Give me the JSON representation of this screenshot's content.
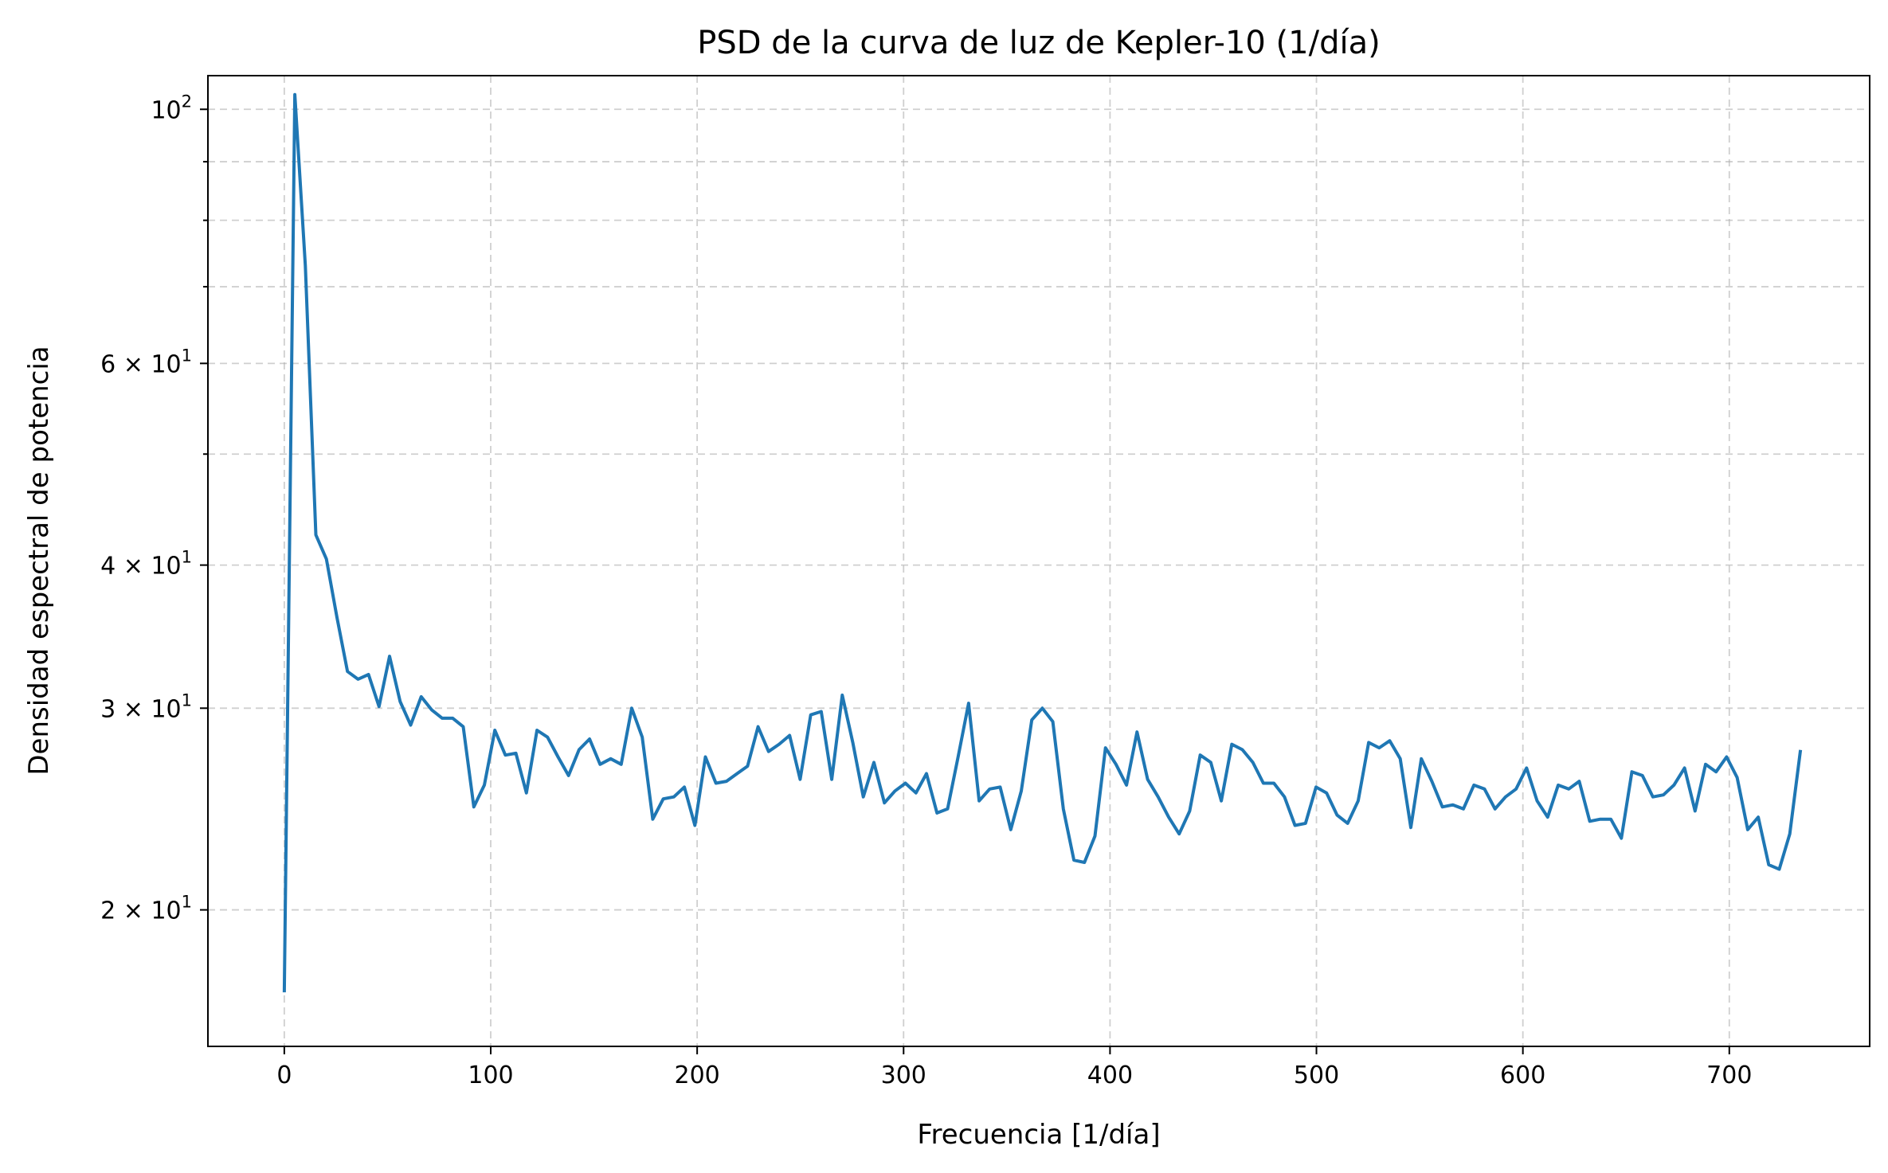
{
  "chart_data": {
    "type": "line",
    "title": "PSD de la curva de luz de Kepler-10 (1/día)",
    "xlabel": "Frecuencia [1/día]",
    "ylabel": "Densidad espectral de potencia",
    "xlim": [
      -37,
      768
    ],
    "ylim": [
      15.2,
      107
    ],
    "yscale": "log",
    "grid": true,
    "color": "#1f77b4",
    "xticks": [
      0,
      100,
      200,
      300,
      400,
      500,
      600,
      700
    ],
    "xtick_labels": [
      "0",
      "100",
      "200",
      "300",
      "400",
      "500",
      "600",
      "700"
    ],
    "yticks": [
      {
        "value": 100,
        "mantissa": "",
        "base": "10",
        "exp": "2"
      },
      {
        "value": 60,
        "mantissa": "6",
        "base": "10",
        "exp": "1"
      },
      {
        "value": 40,
        "mantissa": "4",
        "base": "10",
        "exp": "1"
      },
      {
        "value": 30,
        "mantissa": "3",
        "base": "10",
        "exp": "1"
      },
      {
        "value": 20,
        "mantissa": "2",
        "base": "10",
        "exp": "1"
      }
    ],
    "yminor": [
      50,
      70,
      80,
      90
    ],
    "x": [
      0,
      5.1,
      10.2,
      15.3,
      20.4,
      25.5,
      30.6,
      35.7,
      40.8,
      45.9,
      51,
      56.1,
      61.2,
      66.3,
      71.4,
      76.5,
      81.6,
      86.7,
      91.8,
      96.9,
      102,
      107.1,
      112.2,
      117.3,
      122.4,
      127.5,
      132.6,
      137.7,
      142.8,
      147.9,
      153,
      158.1,
      163.2,
      168.3,
      173.4,
      178.5,
      183.6,
      188.7,
      193.8,
      198.9,
      204,
      209.1,
      214.2,
      219.3,
      224.4,
      229.5,
      234.6,
      239.7,
      244.8,
      249.9,
      255,
      260.1,
      265.2,
      270.3,
      275.4,
      280.5,
      285.6,
      290.7,
      295.8,
      300.9,
      306,
      311.1,
      316.2,
      321.3,
      326.4,
      331.5,
      336.6,
      341.7,
      346.8,
      351.9,
      357,
      362.1,
      367.2,
      372.3,
      377.4,
      382.5,
      387.6,
      392.7,
      397.8,
      402.9,
      408,
      413.1,
      418.2,
      423.3,
      428.4,
      433.5,
      438.6,
      443.7,
      448.8,
      453.9,
      459,
      464.1,
      469.2,
      474.3,
      479.4,
      484.5,
      489.6,
      494.7,
      499.8,
      504.9,
      510,
      515.1,
      520.2,
      525.3,
      530.4,
      535.5,
      540.6,
      545.7,
      550.8,
      555.9,
      561,
      566.1,
      571.2,
      576.3,
      581.4,
      586.5,
      591.6,
      596.7,
      601.8,
      606.9,
      612,
      617.1,
      622.2,
      627.3,
      632.4,
      637.5,
      642.6,
      647.7,
      652.8,
      657.9,
      663,
      668.1,
      673.2,
      678.3,
      683.4,
      688.5,
      693.6,
      698.7,
      703.8,
      708.9,
      714,
      719.1,
      724.2,
      729.3,
      734.4
    ],
    "y": [
      17.0,
      103.0,
      73.0,
      42.5,
      40.5,
      36.0,
      32.3,
      31.8,
      32.1,
      30.1,
      33.3,
      30.4,
      29.0,
      30.7,
      29.9,
      29.4,
      29.4,
      28.9,
      24.6,
      25.7,
      28.7,
      27.3,
      27.4,
      25.3,
      28.7,
      28.3,
      27.2,
      26.2,
      27.6,
      28.2,
      26.8,
      27.1,
      26.8,
      30.0,
      28.3,
      24.0,
      25.0,
      25.1,
      25.6,
      23.7,
      27.2,
      25.8,
      25.9,
      26.3,
      26.7,
      28.9,
      27.5,
      27.9,
      28.4,
      26.0,
      29.6,
      29.8,
      26.0,
      30.8,
      28.0,
      25.1,
      26.9,
      24.8,
      25.4,
      25.8,
      25.3,
      26.3,
      24.3,
      24.5,
      27.2,
      30.3,
      24.9,
      25.5,
      25.6,
      23.5,
      25.4,
      29.3,
      30.0,
      29.2,
      24.5,
      22.1,
      22.0,
      23.2,
      27.7,
      26.8,
      25.7,
      28.6,
      26.0,
      25.1,
      24.1,
      23.3,
      24.4,
      27.3,
      26.9,
      24.9,
      27.9,
      27.6,
      26.9,
      25.8,
      25.8,
      25.1,
      23.7,
      23.8,
      25.6,
      25.3,
      24.2,
      23.8,
      24.9,
      28.0,
      27.7,
      28.1,
      27.1,
      23.6,
      27.1,
      25.9,
      24.6,
      24.7,
      24.5,
      25.7,
      25.5,
      24.5,
      25.1,
      25.5,
      26.6,
      24.9,
      24.1,
      25.7,
      25.5,
      25.9,
      23.9,
      24.0,
      24.0,
      23.1,
      26.4,
      26.2,
      25.1,
      25.2,
      25.7,
      26.6,
      24.4,
      26.8,
      26.4,
      27.2,
      26.1,
      23.5,
      24.1,
      21.9,
      21.7,
      23.3,
      27.5
    ]
  }
}
